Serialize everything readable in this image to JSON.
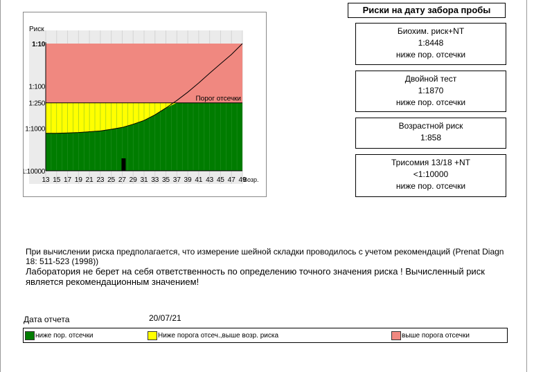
{
  "chart_data": {
    "type": "line",
    "ylabel": "Риск",
    "xlabel": "Возр.",
    "y_ticks": [
      "1:10",
      "1:100",
      "1:250",
      "1:1000",
      "1:10000"
    ],
    "x_ticks": [
      13,
      15,
      17,
      19,
      21,
      23,
      25,
      27,
      29,
      31,
      33,
      35,
      37,
      39,
      41,
      43,
      45,
      47,
      49
    ],
    "xlim": [
      13,
      49
    ],
    "cutoff": "1:250",
    "cutoff_label": "Порог отсечки",
    "zones": [
      {
        "range": [
          "1:10",
          "1:250"
        ],
        "color": "#f08880"
      },
      {
        "range": [
          "1:250",
          "1:1000"
        ],
        "color": "#ffff00"
      },
      {
        "range": [
          "1:1000",
          "1:10000"
        ],
        "color": "#007c00"
      }
    ],
    "age_risk_curve": {
      "x": [
        13,
        15,
        17,
        19,
        21,
        23,
        25,
        27,
        29,
        31,
        33,
        35,
        37,
        39,
        41,
        43,
        45,
        47,
        49
      ],
      "y": [
        "1:1300",
        "1:1300",
        "1:1280",
        "1:1250",
        "1:1200",
        "1:1150",
        "1:1050",
        "1:950",
        "1:800",
        "1:650",
        "1:480",
        "1:330",
        "1:220",
        "1:140",
        "1:85",
        "1:50",
        "1:30",
        "1:18",
        "1:10"
      ]
    },
    "patient_age_marker": 27,
    "grid": true
  },
  "panel": {
    "title": "Риски на дату забора пробы",
    "boxes": [
      {
        "name": "Биохим. риск+NT",
        "value": "1:8448",
        "status": "ниже пор. отсечки"
      },
      {
        "name": "Двойной тест",
        "value": "1:1870",
        "status": "ниже пор. отсечки"
      },
      {
        "name": "Возрастной риск",
        "value": "1:858",
        "status": ""
      },
      {
        "name": "Трисомия 13/18 +NT",
        "value": "<1:10000",
        "status": "ниже пор. отсечки"
      }
    ]
  },
  "notes": {
    "line1": "При вычислении риска предполагается, что измерение шейной складки проводилось с учетом рекомендаций (Prenat Diagn",
    "line2": "18: 511-523 (1998))",
    "line3": "Лаборатория не берет на себя ответственность по определению точного значения риска ! Вычисленный риск",
    "line4": "является рекомендационным значением!"
  },
  "report": {
    "date_label": "Дата отчета",
    "date_value": "20/07/21"
  },
  "legend": [
    {
      "label": "ниже пор. отсечки",
      "color": "#007c00"
    },
    {
      "label": "Ниже порога отсеч.,выше возр. риска",
      "color": "#ffff00"
    },
    {
      "label": "выше порога отсечки",
      "color": "#f08880"
    }
  ]
}
